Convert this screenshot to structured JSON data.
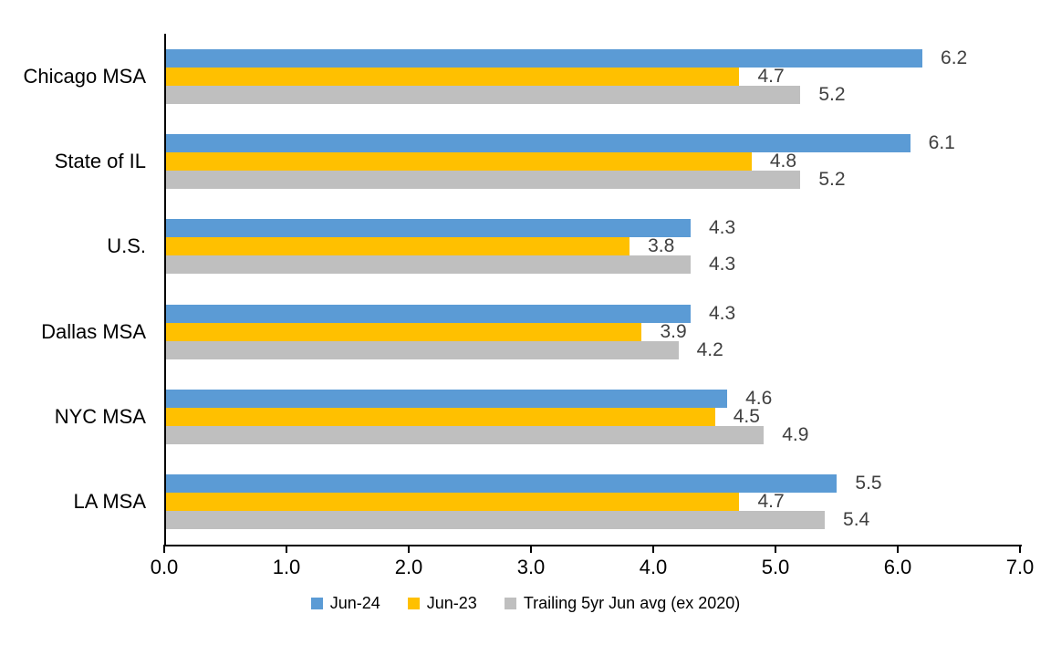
{
  "chart_data": {
    "type": "bar",
    "orientation": "horizontal",
    "title": "",
    "xlabel": "",
    "ylabel": "",
    "grid": false,
    "legend_position": "bottom",
    "xlim": [
      0,
      7
    ],
    "x_ticks": [
      "0.0",
      "1.0",
      "2.0",
      "3.0",
      "4.0",
      "5.0",
      "6.0",
      "7.0"
    ],
    "categories": [
      "Chicago MSA",
      "State of IL",
      "U.S.",
      "Dallas MSA",
      "NYC MSA",
      "LA MSA"
    ],
    "series": [
      {
        "name": "Jun-24",
        "color": "#5B9BD5",
        "values": [
          6.2,
          6.1,
          4.3,
          4.3,
          4.6,
          5.5
        ]
      },
      {
        "name": "Jun-23",
        "color": "#FFC000",
        "values": [
          4.7,
          4.8,
          3.8,
          3.9,
          4.5,
          4.7
        ]
      },
      {
        "name": "Trailing 5yr Jun avg (ex 2020)",
        "color": "#BFBFBF",
        "values": [
          5.2,
          5.2,
          4.3,
          4.2,
          4.9,
          5.4
        ]
      }
    ]
  },
  "colors": {
    "axis": "#000000",
    "category_label": "#000000",
    "tick_label": "#000000",
    "value_label": "#404040",
    "background": "#FFFFFF"
  }
}
